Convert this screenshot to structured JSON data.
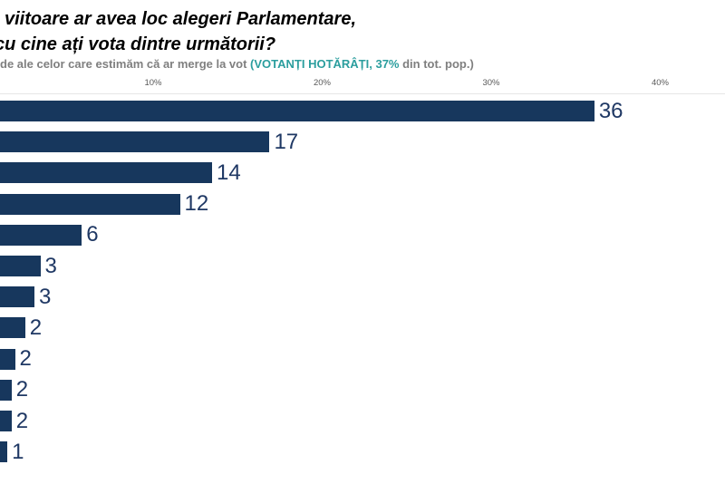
{
  "header": {
    "title_line1": "viitoare ar avea loc alegeri Parlamentare,",
    "title_line2": "cu cine ați vota dintre următorii?",
    "subtitle_prefix": "de ale celor care estimăm că ar merge la vot ",
    "subtitle_highlight": "(VOTANȚI HOTĂRÂȚI, 37%",
    "subtitle_suffix": " din tot. pop.)"
  },
  "colors": {
    "bar_fill": "#17375d",
    "value_label": "#1f3864",
    "title_text": "#000000",
    "subtitle_gray": "#7f7f7f",
    "subtitle_teal": "#2b9e9e",
    "tick_text": "#595959",
    "axis_line": "#e6e6e6",
    "background": "#ffffff"
  },
  "chart_data": {
    "type": "bar",
    "orientation": "horizontal",
    "title": "viitoare ar avea loc alegeri Parlamentare, cu cine ați vota dintre următorii?",
    "subtitle": "de ale celor care estimăm că ar merge la vot (VOTANȚI HOTĂRÂȚI, 37% din tot. pop.)",
    "xlabel": "",
    "ylabel": "",
    "x_ticks": [
      "10%",
      "20%",
      "30%",
      "40%"
    ],
    "x_axis_range_visible_pct": [
      1,
      42
    ],
    "grid": false,
    "legend": false,
    "categories_note": "category labels are cropped off the left edge of the screenshot; chart shows 12 bars",
    "bars": [
      {
        "display": "36",
        "value_pct_est": 36.1
      },
      {
        "display": "17",
        "value_pct_est": 16.9
      },
      {
        "display": "14",
        "value_pct_est": 13.5
      },
      {
        "display": "12",
        "value_pct_est": 11.6
      },
      {
        "display": "6",
        "value_pct_est": 5.8
      },
      {
        "display": "3",
        "value_pct_est": 3.35
      },
      {
        "display": "3",
        "value_pct_est": 3.0
      },
      {
        "display": "2",
        "value_pct_est": 2.45
      },
      {
        "display": "2",
        "value_pct_est": 1.85
      },
      {
        "display": "2",
        "value_pct_est": 1.65
      },
      {
        "display": "2",
        "value_pct_est": 1.65
      },
      {
        "display": "1",
        "value_pct_est": 1.4
      }
    ]
  }
}
